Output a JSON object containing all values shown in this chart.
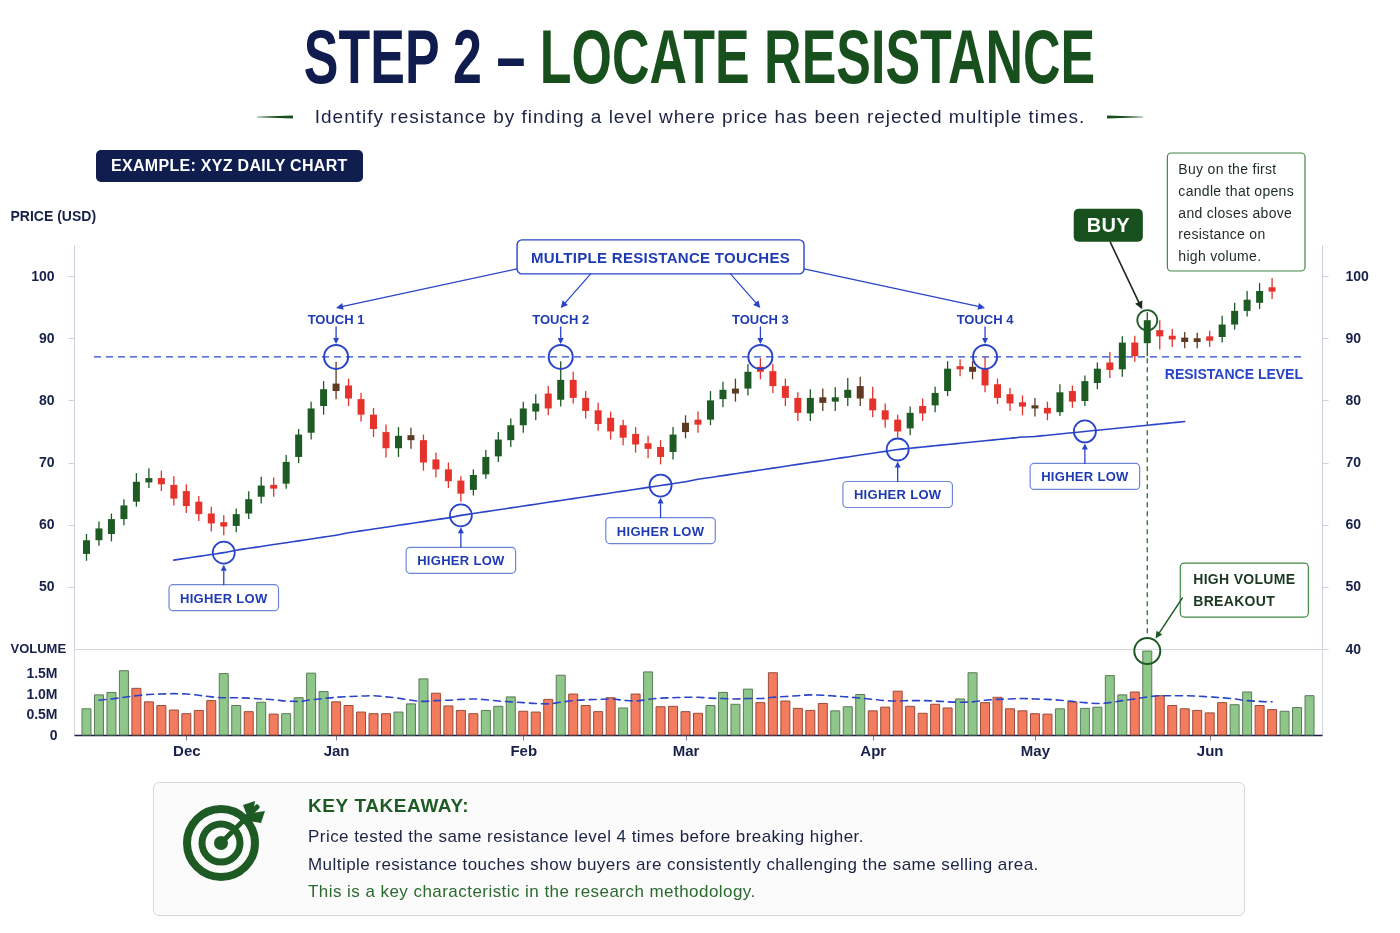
{
  "chart_data": [
    {
      "type": "candlestick",
      "title": "STEP 2 – LOCATE RESISTANCE",
      "subtitle": "Identify resistance by finding a level where price has been rejected multiple times.",
      "ylabel": "PRICE (USD)",
      "categories": [
        null,
        null,
        null,
        null,
        null,
        null,
        null,
        null,
        "Dec",
        null,
        null,
        null,
        null,
        null,
        null,
        null,
        null,
        null,
        null,
        null,
        "Jan",
        null,
        null,
        null,
        null,
        null,
        null,
        null,
        null,
        null,
        null,
        null,
        null,
        null,
        null,
        "Feb",
        null,
        null,
        null,
        null,
        null,
        null,
        null,
        null,
        null,
        null,
        null,
        null,
        "Mar",
        null,
        null,
        null,
        null,
        null,
        null,
        null,
        null,
        null,
        null,
        null,
        null,
        null,
        null,
        "Apr",
        null,
        null,
        null,
        null,
        null,
        null,
        null,
        null,
        null,
        null,
        null,
        null,
        "May",
        null,
        null,
        null,
        null,
        null,
        null,
        null,
        null,
        null,
        null,
        null,
        null,
        null,
        "Jun",
        null,
        null,
        null,
        null,
        null,
        null,
        null,
        null
      ],
      "ohlc": [
        [
          55.3,
          58.5,
          54.2,
          57.5
        ],
        [
          57.5,
          60.5,
          56.6,
          59.4
        ],
        [
          58.5,
          61.8,
          57.3,
          60.9
        ],
        [
          60.9,
          64.1,
          59.9,
          63.1
        ],
        [
          63.7,
          68.3,
          62.9,
          66.9
        ],
        [
          66.8,
          69.1,
          65.9,
          67.5
        ],
        [
          67.5,
          68.7,
          65.4,
          66.5
        ],
        [
          66.4,
          67.8,
          63.1,
          64.2
        ],
        [
          65.4,
          66.5,
          61.9,
          63.0
        ],
        [
          63.7,
          64.6,
          60.6,
          61.7
        ],
        [
          61.8,
          62.9,
          58.9,
          60.2
        ],
        [
          60.4,
          61.5,
          58.3,
          59.7
        ],
        [
          59.8,
          62.6,
          58.8,
          61.7
        ],
        [
          61.8,
          65.4,
          60.9,
          64.1
        ],
        [
          64.5,
          67.7,
          63.4,
          66.3
        ],
        [
          66.4,
          67.6,
          64.5,
          65.8
        ],
        [
          66.6,
          71.2,
          65.8,
          70.1
        ],
        [
          70.9,
          75.4,
          69.9,
          74.5
        ],
        [
          74.8,
          79.8,
          73.7,
          78.7
        ],
        [
          79.1,
          83.1,
          77.7,
          81.8
        ],
        [
          81.5,
          86.2,
          80.2,
          82.7
        ],
        [
          82.4,
          83.5,
          79.1,
          80.3
        ],
        [
          80.2,
          81.2,
          76.6,
          77.7
        ],
        [
          77.7,
          78.8,
          74.1,
          75.4
        ],
        [
          74.9,
          76.1,
          70.8,
          72.3
        ],
        [
          72.3,
          75.7,
          70.9,
          74.3
        ],
        [
          73.6,
          75.6,
          72.2,
          74.4
        ],
        [
          73.6,
          74.5,
          68.7,
          70.0
        ],
        [
          70.5,
          71.6,
          67.6,
          68.9
        ],
        [
          68.9,
          70.0,
          65.9,
          67.0
        ],
        [
          67.1,
          67.8,
          63.7,
          65.0
        ],
        [
          65.6,
          68.9,
          64.7,
          68.0
        ],
        [
          68.1,
          72.0,
          67.4,
          70.9
        ],
        [
          71.0,
          74.9,
          70.1,
          73.7
        ],
        [
          73.6,
          77.1,
          72.5,
          76.0
        ],
        [
          76.0,
          79.8,
          74.8,
          78.7
        ],
        [
          78.2,
          81.0,
          76.8,
          79.5
        ],
        [
          81.1,
          82.3,
          77.6,
          78.7
        ],
        [
          80.1,
          86.3,
          79.0,
          83.3
        ],
        [
          83.3,
          84.6,
          79.5,
          80.4
        ],
        [
          80.4,
          81.5,
          77.1,
          78.3
        ],
        [
          78.4,
          79.6,
          75.1,
          76.2
        ],
        [
          77.2,
          78.2,
          73.7,
          75.0
        ],
        [
          76.0,
          76.9,
          72.8,
          74.0
        ],
        [
          74.6,
          75.7,
          71.6,
          72.9
        ],
        [
          73.1,
          74.3,
          70.7,
          72.2
        ],
        [
          72.5,
          73.6,
          69.7,
          70.9
        ],
        [
          71.7,
          75.7,
          70.5,
          74.5
        ],
        [
          74.9,
          77.6,
          73.9,
          76.4
        ],
        [
          76.9,
          78.2,
          74.8,
          76.1
        ],
        [
          76.9,
          81.5,
          76.0,
          80.0
        ],
        [
          80.2,
          83.0,
          78.9,
          81.7
        ],
        [
          81.9,
          83.5,
          79.8,
          81.1
        ],
        [
          81.9,
          85.8,
          80.8,
          84.6
        ],
        [
          85.4,
          86.8,
          83.4,
          84.6
        ],
        [
          84.7,
          85.9,
          81.2,
          82.3
        ],
        [
          82.3,
          83.5,
          79.1,
          80.4
        ],
        [
          80.4,
          81.3,
          76.7,
          78.0
        ],
        [
          77.9,
          81.8,
          76.7,
          80.4
        ],
        [
          79.6,
          81.9,
          78.3,
          80.5
        ],
        [
          79.8,
          82.1,
          78.3,
          80.5
        ],
        [
          80.4,
          83.6,
          79.1,
          81.7
        ],
        [
          82.3,
          83.8,
          79.1,
          80.3
        ],
        [
          80.3,
          82.2,
          77.3,
          78.4
        ],
        [
          78.4,
          79.5,
          75.6,
          76.9
        ],
        [
          76.9,
          77.7,
          74.0,
          75.0
        ],
        [
          75.5,
          79.0,
          74.4,
          78.0
        ],
        [
          79.1,
          80.3,
          76.7,
          77.9
        ],
        [
          79.2,
          82.2,
          78.1,
          81.2
        ],
        [
          81.5,
          86.3,
          80.7,
          85.1
        ],
        [
          85.5,
          86.6,
          83.9,
          85.0
        ],
        [
          84.6,
          86.3,
          83.4,
          85.4
        ],
        [
          85.1,
          87.0,
          81.3,
          82.4
        ],
        [
          82.6,
          83.5,
          79.4,
          80.4
        ],
        [
          81.0,
          82.0,
          78.3,
          79.5
        ],
        [
          79.7,
          80.8,
          77.6,
          79.0
        ],
        [
          79.2,
          80.4,
          77.4,
          78.7
        ],
        [
          78.8,
          79.8,
          76.8,
          77.9
        ],
        [
          78.1,
          82.6,
          77.5,
          81.3
        ],
        [
          81.5,
          82.4,
          78.8,
          79.8
        ],
        [
          79.9,
          84.0,
          79.1,
          83.1
        ],
        [
          82.8,
          86.1,
          81.8,
          85.1
        ],
        [
          86.1,
          87.8,
          83.6,
          84.9
        ],
        [
          85.0,
          90.3,
          83.8,
          89.3
        ],
        [
          89.3,
          90.4,
          86.2,
          87.1
        ],
        [
          89.2,
          94.2,
          87.1,
          92.9
        ],
        [
          91.3,
          92.9,
          88.2,
          90.3
        ],
        [
          90.4,
          91.5,
          88.6,
          89.8
        ],
        [
          89.4,
          91.0,
          88.4,
          90.1
        ],
        [
          89.4,
          90.9,
          88.4,
          90.0
        ],
        [
          90.3,
          91.2,
          88.6,
          89.6
        ],
        [
          90.2,
          93.6,
          89.3,
          92.2
        ],
        [
          92.2,
          95.7,
          91.4,
          94.4
        ],
        [
          94.4,
          97.6,
          93.5,
          96.2
        ],
        [
          95.7,
          98.9,
          94.7,
          97.6
        ],
        [
          98.2,
          99.7,
          96.3,
          97.5
        ],
        null,
        null,
        null
      ],
      "colors": [
        "#1e5b24",
        "#1e5b24",
        "#1e5b24",
        "#1e5b24",
        "#1e5b24",
        "#1e5b24",
        "#e5322b",
        "#e5322b",
        "#e5322b",
        "#e5322b",
        "#e5322b",
        "#e5322b",
        "#1e5b24",
        "#1e5b24",
        "#1e5b24",
        "#e5322b",
        "#1e5b24",
        "#1e5b24",
        "#1e5b24",
        "#1e5b24",
        "#5e3a22",
        "#e5322b",
        "#e5322b",
        "#e5322b",
        "#e5322b",
        "#1e5b24",
        "#5e3a22",
        "#e5322b",
        "#e5322b",
        "#e5322b",
        "#e5322b",
        "#1e5b24",
        "#1e5b24",
        "#1e5b24",
        "#1e5b24",
        "#1e5b24",
        "#1e5b24",
        "#e5322b",
        "#1e5b24",
        "#e5322b",
        "#e5322b",
        "#e5322b",
        "#e5322b",
        "#e5322b",
        "#e5322b",
        "#e5322b",
        "#e5322b",
        "#1e5b24",
        "#5e3a22",
        "#e5322b",
        "#1e5b24",
        "#1e5b24",
        "#5e3a22",
        "#1e5b24",
        "#e5322b",
        "#e5322b",
        "#e5322b",
        "#e5322b",
        "#1e5b24",
        "#5e3a22",
        "#1e5b24",
        "#1e5b24",
        "#5e3a22",
        "#e5322b",
        "#e5322b",
        "#e5322b",
        "#1e5b24",
        "#e5322b",
        "#1e5b24",
        "#1e5b24",
        "#e5322b",
        "#5e3a22",
        "#e5322b",
        "#e5322b",
        "#e5322b",
        "#e5322b",
        "#5e3a22",
        "#e5322b",
        "#1e5b24",
        "#e5322b",
        "#1e5b24",
        "#1e5b24",
        "#e5322b",
        "#1e5b24",
        "#e5322b",
        "#1e5b24",
        "#e5322b",
        "#e5322b",
        "#5e3a22",
        "#5e3a22",
        "#e5322b",
        "#1e5b24",
        "#1e5b24",
        "#1e5b24",
        "#1e5b24",
        "#e5322b",
        null,
        null,
        null
      ],
      "ylim": [
        40,
        105
      ],
      "yticks": [
        50,
        60,
        70,
        80,
        90,
        100
      ],
      "y2lim": [
        40,
        105
      ],
      "y2ticks": [
        40,
        50,
        60,
        70,
        80,
        90,
        100
      ],
      "tick_labels": "y",
      "ref_lines": [
        {
          "axis": "y",
          "value": 87,
          "label": "RESISTANCE LEVEL",
          "color": "#2a44c8",
          "line_style": "dashed"
        }
      ],
      "series": [
        {
          "type": "line",
          "values": [
            null,
            null,
            null,
            null,
            null,
            null,
            null,
            54.3,
            54.6,
            54.9,
            55.2,
            55.5,
            55.9,
            56.2,
            56.5,
            56.8,
            57.1,
            57.4,
            57.7,
            58.0,
            58.3,
            58.7,
            59.0,
            59.3,
            59.6,
            59.9,
            60.2,
            60.5,
            60.8,
            61.1,
            61.5,
            61.8,
            62.1,
            62.4,
            62.7,
            63.0,
            63.3,
            63.6,
            63.9,
            64.2,
            64.5,
            64.8,
            65.1,
            65.4,
            65.7,
            66.0,
            66.3,
            66.6,
            66.9,
            67.3,
            67.6,
            67.9,
            68.2,
            68.5,
            68.8,
            69.1,
            69.4,
            69.7,
            70.0,
            70.3,
            70.6,
            70.9,
            71.2,
            71.5,
            71.8,
            72.1,
            72.3,
            72.5,
            72.7,
            72.9,
            73.1,
            73.3,
            73.5,
            73.7,
            73.9,
            74.1,
            74.2,
            74.4,
            74.6,
            74.8,
            75.0,
            75.2,
            75.4,
            75.6,
            75.8,
            76.0,
            76.2,
            76.4,
            76.6,
            null,
            null,
            null,
            null,
            null,
            null,
            null,
            null,
            null,
            null
          ],
          "color": "#2a44c8"
        }
      ],
      "annotations": [
        "EXAMPLE: XYZ DAILY CHART",
        "MULTIPLE RESISTANCE TOUCHES",
        {
          "text": "TOUCH 1",
          "x": "Jan",
          "y": 87
        },
        {
          "text": "TOUCH 2",
          "y": 87
        },
        {
          "text": "TOUCH 3",
          "y": 87
        },
        {
          "text": "TOUCH 4",
          "y": 87
        },
        {
          "text": "HIGHER LOW",
          "y": 55.5
        },
        {
          "text": "HIGHER LOW",
          "y": 61.5
        },
        {
          "text": "HIGHER LOW",
          "y": 66.3
        },
        {
          "text": "HIGHER LOW",
          "y": 72.1
        },
        {
          "text": "HIGHER LOW",
          "y": 75.0
        },
        "BUY",
        "Buy on the first candle that opens and closes above resistance on high volume."
      ]
    },
    {
      "type": "bar",
      "ylabel": "VOLUME",
      "categories": [
        null,
        null,
        null,
        null,
        null,
        null,
        null,
        null,
        "Dec",
        null,
        null,
        null,
        null,
        null,
        null,
        null,
        null,
        null,
        null,
        null,
        "Jan",
        null,
        null,
        null,
        null,
        null,
        null,
        null,
        null,
        null,
        null,
        null,
        null,
        null,
        null,
        "Feb",
        null,
        null,
        null,
        null,
        null,
        null,
        null,
        null,
        null,
        null,
        null,
        null,
        "Mar",
        null,
        null,
        null,
        null,
        null,
        null,
        null,
        null,
        null,
        null,
        null,
        null,
        null,
        null,
        "Apr",
        null,
        null,
        null,
        null,
        null,
        null,
        null,
        null,
        null,
        null,
        null,
        null,
        "May",
        null,
        null,
        null,
        null,
        null,
        null,
        null,
        null,
        null,
        null,
        null,
        null,
        null,
        "Jun",
        null,
        null,
        null,
        null,
        null,
        null,
        null,
        null
      ],
      "series": [
        {
          "type": "bar",
          "values": [
            0.64,
            0.98,
            1.04,
            1.57,
            1.14,
            0.81,
            0.72,
            0.61,
            0.52,
            0.6,
            0.84,
            1.5,
            0.72,
            0.57,
            0.8,
            0.51,
            0.52,
            0.91,
            1.51,
            1.06,
            0.81,
            0.72,
            0.56,
            0.52,
            0.52,
            0.56,
            0.76,
            1.37,
            1.02,
            0.71,
            0.6,
            0.52,
            0.6,
            0.7,
            0.93,
            0.58,
            0.56,
            0.87,
            1.46,
            1.0,
            0.72,
            0.57,
            0.91,
            0.66,
            1.0,
            1.54,
            0.69,
            0.7,
            0.57,
            0.53,
            0.72,
            1.04,
            0.75,
            1.12,
            0.79,
            1.52,
            0.83,
            0.65,
            0.6,
            0.77,
            0.59,
            0.69,
            0.99,
            0.59,
            0.68,
            1.07,
            0.7,
            0.53,
            0.75,
            0.66,
            0.88,
            1.52,
            0.79,
            0.92,
            0.64,
            0.59,
            0.52,
            0.51,
            0.64,
            0.81,
            0.65,
            0.68,
            1.45,
            0.98,
            1.05,
            2.05,
            0.96,
            0.72,
            0.64,
            0.6,
            0.54,
            0.79,
            0.74,
            1.05,
            0.72,
            0.62,
            0.58,
            0.67,
            0.96
          ],
          "colors": [
            "#8fc68a",
            "#8fc68a",
            "#8fc68a",
            "#8fc68a",
            "#f47c5e",
            "#f47c5e",
            "#f47c5e",
            "#f47c5e",
            "#f47c5e",
            "#f47c5e",
            "#f47c5e",
            "#8fc68a",
            "#8fc68a",
            "#f47c5e",
            "#8fc68a",
            "#f47c5e",
            "#8fc68a",
            "#8fc68a",
            "#8fc68a",
            "#8fc68a",
            "#f47c5e",
            "#f47c5e",
            "#f47c5e",
            "#f47c5e",
            "#f47c5e",
            "#8fc68a",
            "#8fc68a",
            "#8fc68a",
            "#f47c5e",
            "#f47c5e",
            "#f47c5e",
            "#f47c5e",
            "#8fc68a",
            "#8fc68a",
            "#8fc68a",
            "#f47c5e",
            "#f47c5e",
            "#f47c5e",
            "#8fc68a",
            "#f47c5e",
            "#f47c5e",
            "#f47c5e",
            "#f47c5e",
            "#8fc68a",
            "#f47c5e",
            "#8fc68a",
            "#f47c5e",
            "#f47c5e",
            "#f47c5e",
            "#f47c5e",
            "#8fc68a",
            "#8fc68a",
            "#8fc68a",
            "#8fc68a",
            "#f47c5e",
            "#f47c5e",
            "#f47c5e",
            "#f47c5e",
            "#f47c5e",
            "#f47c5e",
            "#8fc68a",
            "#8fc68a",
            "#8fc68a",
            "#f47c5e",
            "#f47c5e",
            "#f47c5e",
            "#f47c5e",
            "#f47c5e",
            "#f47c5e",
            "#f47c5e",
            "#8fc68a",
            "#8fc68a",
            "#f47c5e",
            "#f47c5e",
            "#f47c5e",
            "#f47c5e",
            "#f47c5e",
            "#f47c5e",
            "#8fc68a",
            "#f47c5e",
            "#8fc68a",
            "#8fc68a",
            "#8fc68a",
            "#8fc68a",
            "#f47c5e",
            "#8fc68a",
            "#f47c5e",
            "#f47c5e",
            "#f47c5e",
            "#f47c5e",
            "#f47c5e",
            "#f47c5e",
            "#8fc68a",
            "#8fc68a",
            "#f47c5e",
            "#f47c5e",
            "#8fc68a",
            "#8fc68a",
            "#8fc68a"
          ]
        },
        {
          "type": "line",
          "values": [
            null,
            0.85,
            0.88,
            0.92,
            0.96,
            0.99,
            1.0,
            1.01,
            1.0,
            0.97,
            0.93,
            0.91,
            0.91,
            0.9,
            0.88,
            0.86,
            0.83,
            0.82,
            0.86,
            0.89,
            0.92,
            0.94,
            0.95,
            0.96,
            0.93,
            0.9,
            0.85,
            0.82,
            0.84,
            0.85,
            0.87,
            0.88,
            0.86,
            0.83,
            0.81,
            0.79,
            0.77,
            0.76,
            0.8,
            0.84,
            0.86,
            0.87,
            0.88,
            0.85,
            0.83,
            0.87,
            0.9,
            0.91,
            0.92,
            0.92,
            0.9,
            0.89,
            0.88,
            0.89,
            0.89,
            0.92,
            0.94,
            0.96,
            0.98,
            0.97,
            0.95,
            0.93,
            0.9,
            0.87,
            0.84,
            0.83,
            0.84,
            0.84,
            0.83,
            0.81,
            0.8,
            0.81,
            0.85,
            0.87,
            0.88,
            0.89,
            0.88,
            0.87,
            0.85,
            0.82,
            0.79,
            0.77,
            0.79,
            0.84,
            0.88,
            0.93,
            0.96,
            0.96,
            0.96,
            0.95,
            0.93,
            0.91,
            0.88,
            0.84,
            0.82,
            0.81,
            null,
            null,
            null
          ],
          "color": "#2a44c8",
          "line_style": "dashed"
        }
      ],
      "ylim": [
        0,
        2.1
      ],
      "yticks": [
        0,
        {
          "value": 0.5,
          "label": "0.5M"
        },
        {
          "value": 1,
          "label": "1.0M"
        },
        {
          "value": 1.5,
          "label": "1.5M"
        }
      ],
      "annotations": [
        "HIGH VOLUME BREAKOUT",
        "KEY TAKEAWAY:",
        "Price tested the same resistance level 4 times before breaking higher.",
        "Multiple resistance touches show buyers are consistently challenging the same selling area.",
        "This is a key characteristic in the research methodology."
      ]
    }
  ]
}
